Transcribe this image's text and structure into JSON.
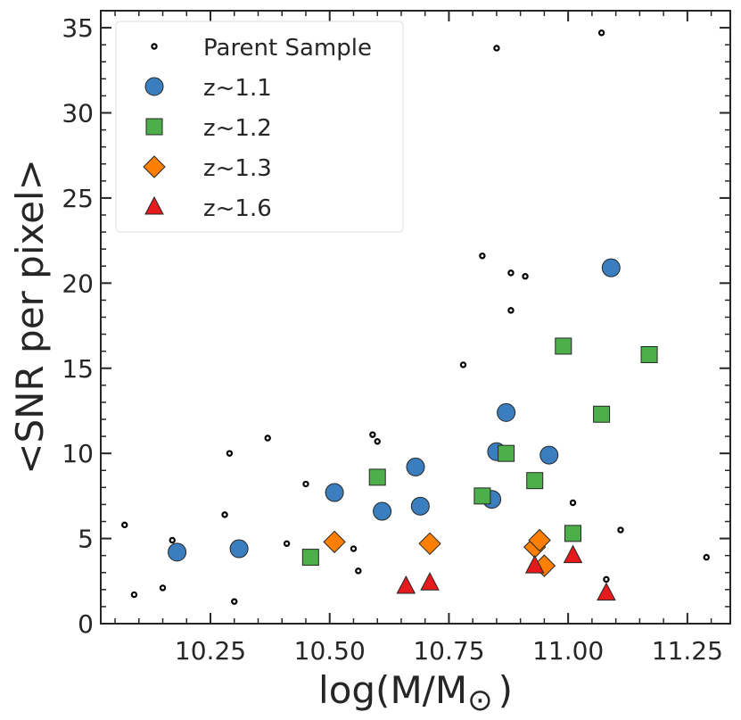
{
  "chart_data": {
    "type": "scatter",
    "xlabel": "log(M/M",
    "xlabel_sub": "⊙",
    "xlabel_close": ")",
    "ylabel": "<SNR per pixel>",
    "xlim": [
      10.02,
      11.34
    ],
    "ylim": [
      0,
      36
    ],
    "xticks": [
      10.25,
      10.5,
      10.75,
      11.0,
      11.25
    ],
    "xtick_labels": [
      "10.25",
      "10.50",
      "10.75",
      "11.00",
      "11.25"
    ],
    "yticks": [
      0,
      5,
      10,
      15,
      20,
      25,
      30,
      35
    ],
    "ytick_labels": [
      "0",
      "5",
      "10",
      "15",
      "20",
      "25",
      "30",
      "35"
    ],
    "grid": false,
    "legend_position": "top-left",
    "series": [
      {
        "name": "Parent Sample",
        "marker": "small-circle",
        "color": "#000000",
        "points": [
          [
            10.07,
            5.8
          ],
          [
            10.09,
            1.7
          ],
          [
            10.15,
            2.1
          ],
          [
            10.17,
            4.9
          ],
          [
            10.28,
            6.4
          ],
          [
            10.29,
            10.0
          ],
          [
            10.3,
            1.3
          ],
          [
            10.37,
            10.9
          ],
          [
            10.41,
            4.7
          ],
          [
            10.45,
            8.2
          ],
          [
            10.55,
            4.4
          ],
          [
            10.56,
            3.1
          ],
          [
            10.59,
            11.1
          ],
          [
            10.6,
            10.7
          ],
          [
            10.78,
            15.2
          ],
          [
            10.82,
            21.6
          ],
          [
            10.85,
            33.8
          ],
          [
            10.88,
            20.6
          ],
          [
            10.88,
            18.4
          ],
          [
            10.91,
            20.4
          ],
          [
            11.01,
            7.1
          ],
          [
            11.07,
            34.7
          ],
          [
            11.08,
            2.6
          ],
          [
            11.11,
            5.5
          ],
          [
            11.29,
            3.9
          ]
        ]
      },
      {
        "name": "z~1.1",
        "marker": "circle",
        "color": "#3a7ebf",
        "points": [
          [
            10.18,
            4.2
          ],
          [
            10.31,
            4.4
          ],
          [
            10.51,
            7.7
          ],
          [
            10.61,
            6.6
          ],
          [
            10.68,
            9.2
          ],
          [
            10.69,
            6.9
          ],
          [
            10.84,
            7.3
          ],
          [
            10.85,
            10.1
          ],
          [
            10.87,
            12.4
          ],
          [
            10.96,
            9.9
          ],
          [
            11.09,
            20.9
          ]
        ]
      },
      {
        "name": "z~1.2",
        "marker": "square",
        "color": "#4daf4a",
        "points": [
          [
            10.46,
            3.9
          ],
          [
            10.6,
            8.6
          ],
          [
            10.82,
            7.5
          ],
          [
            10.87,
            10.0
          ],
          [
            10.93,
            8.4
          ],
          [
            10.99,
            16.3
          ],
          [
            11.01,
            5.3
          ],
          [
            11.07,
            12.3
          ],
          [
            11.17,
            15.8
          ]
        ]
      },
      {
        "name": "z~1.3",
        "marker": "diamond",
        "color": "#ff7f00",
        "points": [
          [
            10.51,
            4.8
          ],
          [
            10.71,
            4.7
          ],
          [
            10.93,
            4.5
          ],
          [
            10.94,
            4.9
          ],
          [
            10.95,
            3.4
          ]
        ]
      },
      {
        "name": "z~1.6",
        "marker": "triangle",
        "color": "#e41a1c",
        "points": [
          [
            10.66,
            2.2
          ],
          [
            10.71,
            2.4
          ],
          [
            10.93,
            3.4
          ],
          [
            11.01,
            4.0
          ],
          [
            11.08,
            1.8
          ]
        ]
      }
    ]
  }
}
